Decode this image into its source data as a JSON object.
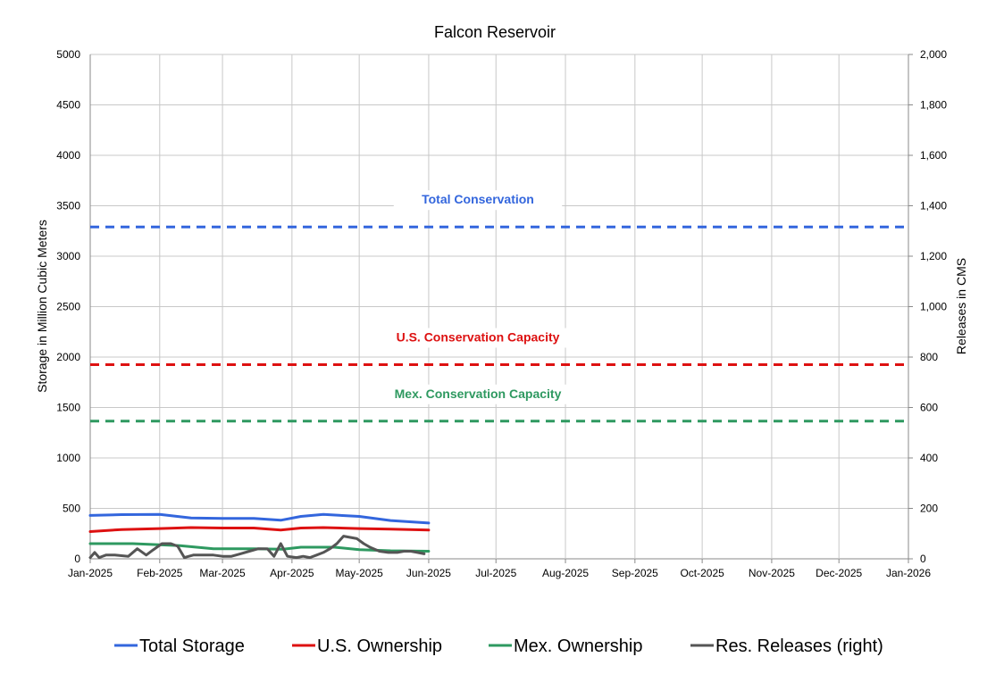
{
  "chart_data": {
    "type": "line",
    "title": "Falcon Reservoir",
    "ylabel": "Storage in Million Cubic Meters",
    "y2label": "Releases in CMS",
    "x_tick_labels": [
      "Jan-2025",
      "Feb-2025",
      "Mar-2025",
      "Apr-2025",
      "May-2025",
      "Jun-2025",
      "Jul-2025",
      "Aug-2025",
      "Sep-2025",
      "Oct-2025",
      "Nov-2025",
      "Dec-2025",
      "Jan-2026"
    ],
    "xlim": [
      "2025-01-01",
      "2026-01-01"
    ],
    "ylim": [
      0,
      5000
    ],
    "y_ticks": [
      "0",
      "500",
      "1000",
      "1500",
      "2000",
      "2500",
      "3000",
      "3500",
      "4000",
      "4500",
      "5000"
    ],
    "y2lim": [
      0,
      2000
    ],
    "y2_ticks": [
      "0",
      "200",
      "400",
      "600",
      "800",
      "1,000",
      "1,200",
      "1,400",
      "1,600",
      "1,800",
      "2,000"
    ],
    "grid": true,
    "legend_position": "bottom",
    "reference_lines": [
      {
        "label": "Total Conservation",
        "y": 3290,
        "color": "#3366dd"
      },
      {
        "label": "U.S. Conservation Capacity",
        "y": 1925,
        "color": "#dd1111"
      },
      {
        "label": "Mex. Conservation Capacity",
        "y": 1365,
        "color": "#2e9960"
      }
    ],
    "series": [
      {
        "name": "Total Storage",
        "axis": "left",
        "color": "#3366dd",
        "x": [
          "2025-01-01",
          "2025-01-15",
          "2025-02-01",
          "2025-02-15",
          "2025-03-01",
          "2025-03-15",
          "2025-03-27",
          "2025-04-05",
          "2025-04-15",
          "2025-05-01",
          "2025-05-15",
          "2025-06-01"
        ],
        "y": [
          430,
          438,
          440,
          405,
          400,
          400,
          382,
          420,
          440,
          420,
          380,
          355
        ]
      },
      {
        "name": "U.S. Ownership",
        "axis": "left",
        "color": "#dd1111",
        "x": [
          "2025-01-01",
          "2025-01-15",
          "2025-02-01",
          "2025-02-15",
          "2025-03-01",
          "2025-03-15",
          "2025-03-27",
          "2025-04-05",
          "2025-04-15",
          "2025-05-01",
          "2025-05-15",
          "2025-06-01"
        ],
        "y": [
          270,
          290,
          300,
          310,
          305,
          305,
          285,
          305,
          310,
          300,
          295,
          285
        ]
      },
      {
        "name": "Mex. Ownership",
        "axis": "left",
        "color": "#2e9960",
        "x": [
          "2025-01-01",
          "2025-01-20",
          "2025-02-10",
          "2025-02-25",
          "2025-03-15",
          "2025-03-28",
          "2025-04-05",
          "2025-04-20",
          "2025-05-01",
          "2025-05-15",
          "2025-06-01"
        ],
        "y": [
          150,
          150,
          130,
          100,
          100,
          95,
          115,
          115,
          90,
          80,
          75
        ]
      },
      {
        "name": "Res. Releases (right)",
        "axis": "right",
        "color": "#555555",
        "x": [
          "2025-01-01",
          "2025-01-03",
          "2025-01-05",
          "2025-01-08",
          "2025-01-12",
          "2025-01-18",
          "2025-01-22",
          "2025-01-26",
          "2025-01-29",
          "2025-02-02",
          "2025-02-06",
          "2025-02-09",
          "2025-02-12",
          "2025-02-16",
          "2025-02-20",
          "2025-02-25",
          "2025-03-01",
          "2025-03-05",
          "2025-03-09",
          "2025-03-13",
          "2025-03-17",
          "2025-03-21",
          "2025-03-24",
          "2025-03-27",
          "2025-03-30",
          "2025-04-03",
          "2025-04-06",
          "2025-04-09",
          "2025-04-12",
          "2025-04-15",
          "2025-04-18",
          "2025-04-21",
          "2025-04-24",
          "2025-04-27",
          "2025-04-30",
          "2025-05-03",
          "2025-05-06",
          "2025-05-10",
          "2025-05-14",
          "2025-05-18",
          "2025-05-21",
          "2025-05-24",
          "2025-05-27",
          "2025-05-30"
        ],
        "y": [
          5,
          25,
          5,
          15,
          15,
          10,
          40,
          15,
          35,
          60,
          60,
          50,
          5,
          15,
          15,
          15,
          10,
          10,
          20,
          30,
          40,
          40,
          10,
          60,
          10,
          5,
          10,
          5,
          15,
          25,
          40,
          60,
          90,
          85,
          80,
          60,
          45,
          30,
          25,
          25,
          30,
          30,
          25,
          20
        ]
      }
    ]
  }
}
